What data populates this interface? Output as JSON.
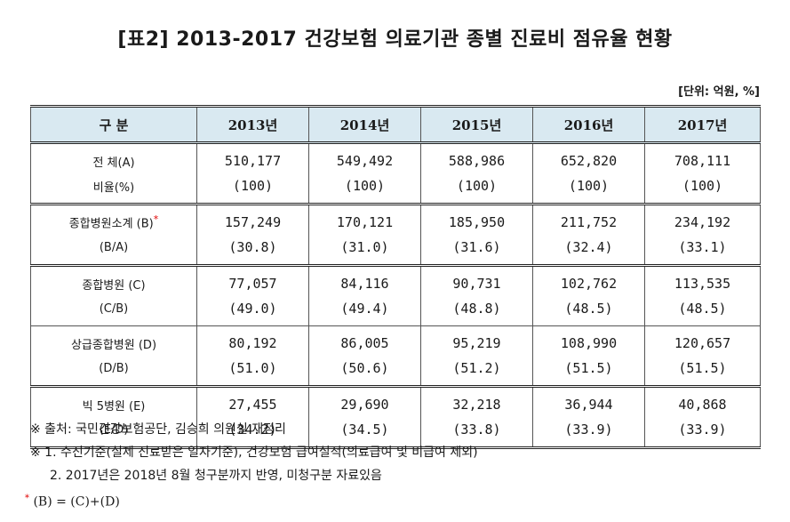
{
  "title": "[표2] 2013-2017 건강보험 의료기관 종별 진료비 점유율 현황",
  "unit": "[단위: 억원, %]",
  "table": {
    "headers": [
      "구 분",
      "2013년",
      "2014년",
      "2015년",
      "2016년",
      "2017년"
    ],
    "groups": [
      {
        "label1": "전 체(A)",
        "label2": "비율(%)",
        "values": [
          "510,177",
          "549,492",
          "588,986",
          "652,820",
          "708,111"
        ],
        "ratios": [
          "(100)",
          "(100)",
          "(100)",
          "(100)",
          "(100)"
        ]
      },
      {
        "label1": "종합병원소계 (B)",
        "label2": "(B/A)",
        "star": "*",
        "values": [
          "157,249",
          "170,121",
          "185,950",
          "211,752",
          "234,192"
        ],
        "ratios": [
          "(30.8)",
          "(31.0)",
          "(31.6)",
          "(32.4)",
          "(33.1)"
        ]
      },
      {
        "label1": "종합병원 (C)",
        "label2": "(C/B)",
        "values": [
          "77,057",
          "84,116",
          "90,731",
          "102,762",
          "113,535"
        ],
        "ratios": [
          "(49.0)",
          "(49.4)",
          "(48.8)",
          "(48.5)",
          "(48.5)"
        ]
      },
      {
        "label1": "상급종합병원 (D)",
        "label2": "(D/B)",
        "values": [
          "80,192",
          "86,005",
          "95,219",
          "108,990",
          "120,657"
        ],
        "ratios": [
          "(51.0)",
          "(50.6)",
          "(51.2)",
          "(51.5)",
          "(51.5)"
        ]
      },
      {
        "label1": "빅 5병원 (E)",
        "label2": "(E/D)",
        "values": [
          "27,455",
          "29,690",
          "32,218",
          "36,944",
          "40,868"
        ],
        "ratios": [
          "(34.2)",
          "(34.5)",
          "(33.8)",
          "(33.9)",
          "(33.9)"
        ]
      }
    ]
  },
  "notes": {
    "source": "※ 출처: 국민건강보험공단, 김승희 의원실 재정리",
    "note1": "※ 1. 수진기준(실제 진료받은 일자기준), 건강보험 급여실적(의료급여 및 비급여 제외)",
    "note2": "2. 2017년은 2018년 8월 청구분까지 반영, 미청구분 자료있음"
  },
  "footnote": {
    "star": "*",
    "text": "(B) = (C)+(D)"
  }
}
